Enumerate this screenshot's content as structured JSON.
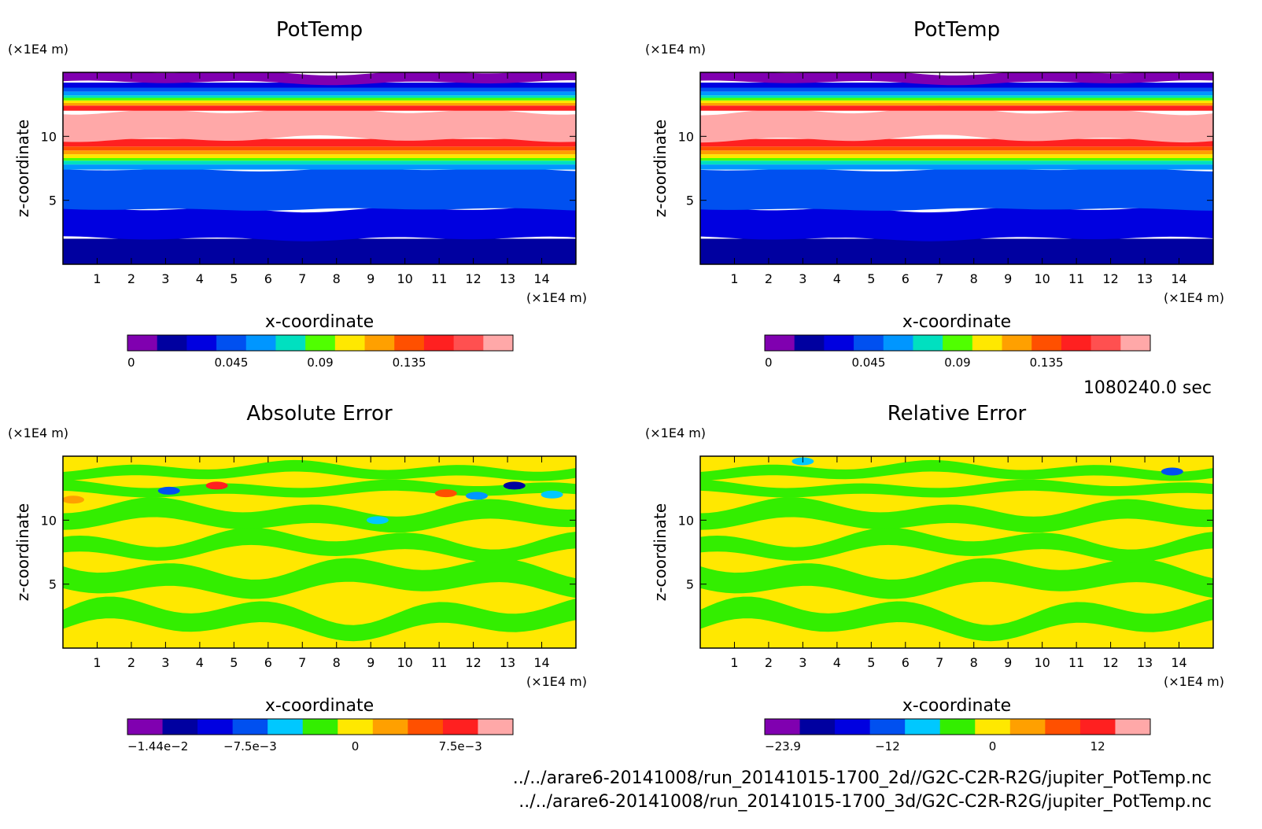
{
  "figure": {
    "time_label": "1080240.0 sec",
    "files": [
      "../../arare6-20141008/run_20141015-1700_2d//G2C-C2R-R2G/jupiter_PotTemp.nc",
      "../../arare6-20141008/run_20141015-1700_3d/G2C-C2R-R2G/jupiter_PotTemp.nc"
    ]
  },
  "chart_data": [
    {
      "type": "heatmap",
      "title": "PotTemp",
      "xlabel": "x-coordinate",
      "ylabel": "z-coordinate",
      "x_unit": "(×1E4 m)",
      "y_unit": "(×1E4 m)",
      "xlim": [
        0,
        15
      ],
      "ylim": [
        0,
        15
      ],
      "x_ticks": [
        1,
        2,
        3,
        4,
        5,
        6,
        7,
        8,
        9,
        10,
        11,
        12,
        13,
        14
      ],
      "y_ticks": [
        5,
        10
      ],
      "colorbar_labels": [
        "0",
        "0.045",
        "0.09",
        "0.135"
      ],
      "colorbar_colors": [
        "#8000b0",
        "#0000a0",
        "#0000e0",
        "#0050f0",
        "#0096ff",
        "#00e0c0",
        "#50ff00",
        "#ffe800",
        "#ffa000",
        "#ff5000",
        "#ff2020",
        "#ff5050",
        "#ffa8a8"
      ],
      "bands": [
        {
          "z0": 0,
          "z1": 2,
          "color": "#0000a0",
          "amp": 0
        },
        {
          "z0": 2,
          "z1": 4.3,
          "color": "#0000e0",
          "amp": 0.25
        },
        {
          "z0": 4.3,
          "z1": 7.4,
          "color": "#0050f0",
          "amp": 0.15
        },
        {
          "z0": 7.4,
          "z1": 7.8,
          "color": "#0096ff",
          "amp": 0
        },
        {
          "z0": 7.8,
          "z1": 8.1,
          "color": "#00e0c0",
          "amp": 0
        },
        {
          "z0": 8.1,
          "z1": 8.3,
          "color": "#50ff00",
          "amp": 0
        },
        {
          "z0": 8.3,
          "z1": 8.6,
          "color": "#ffe800",
          "amp": 0
        },
        {
          "z0": 8.6,
          "z1": 8.9,
          "color": "#ffa000",
          "amp": 0
        },
        {
          "z0": 8.9,
          "z1": 9.2,
          "color": "#ff5000",
          "amp": 0
        },
        {
          "z0": 9.2,
          "z1": 9.8,
          "color": "#ff2020",
          "amp": 0
        },
        {
          "z0": 9.8,
          "z1": 12,
          "color": "#ffa8a8",
          "amp": 0.35
        },
        {
          "z0": 12,
          "z1": 12.4,
          "color": "#ff2020",
          "amp": 0
        },
        {
          "z0": 12.4,
          "z1": 12.6,
          "color": "#ffa000",
          "amp": 0
        },
        {
          "z0": 12.6,
          "z1": 12.8,
          "color": "#ffe800",
          "amp": 0
        },
        {
          "z0": 12.8,
          "z1": 13,
          "color": "#50ff00",
          "amp": 0
        },
        {
          "z0": 13,
          "z1": 13.2,
          "color": "#00e0c0",
          "amp": 0
        },
        {
          "z0": 13.2,
          "z1": 13.5,
          "color": "#0096ff",
          "amp": 0
        },
        {
          "z0": 13.5,
          "z1": 13.8,
          "color": "#0050f0",
          "amp": 0
        },
        {
          "z0": 13.8,
          "z1": 14.2,
          "color": "#0000e0",
          "amp": 0
        },
        {
          "z0": 14.2,
          "z1": 15,
          "color": "#8000b0",
          "amp": 0.25
        }
      ]
    },
    {
      "type": "heatmap",
      "title": "PotTemp",
      "xlabel": "x-coordinate",
      "ylabel": "z-coordinate",
      "x_unit": "(×1E4 m)",
      "y_unit": "(×1E4 m)",
      "xlim": [
        0,
        15
      ],
      "ylim": [
        0,
        15
      ],
      "x_ticks": [
        1,
        2,
        3,
        4,
        5,
        6,
        7,
        8,
        9,
        10,
        11,
        12,
        13,
        14
      ],
      "y_ticks": [
        5,
        10
      ],
      "colorbar_labels": [
        "0",
        "0.045",
        "0.09",
        "0.135"
      ],
      "colorbar_colors": [
        "#8000b0",
        "#0000a0",
        "#0000e0",
        "#0050f0",
        "#0096ff",
        "#00e0c0",
        "#50ff00",
        "#ffe800",
        "#ffa000",
        "#ff5000",
        "#ff2020",
        "#ff5050",
        "#ffa8a8"
      ],
      "bands": [
        {
          "z0": 0,
          "z1": 2,
          "color": "#0000a0",
          "amp": 0
        },
        {
          "z0": 2,
          "z1": 4.3,
          "color": "#0000e0",
          "amp": 0.25
        },
        {
          "z0": 4.3,
          "z1": 7.4,
          "color": "#0050f0",
          "amp": 0.15
        },
        {
          "z0": 7.4,
          "z1": 7.8,
          "color": "#0096ff",
          "amp": 0
        },
        {
          "z0": 7.8,
          "z1": 8.1,
          "color": "#00e0c0",
          "amp": 0
        },
        {
          "z0": 8.1,
          "z1": 8.3,
          "color": "#50ff00",
          "amp": 0
        },
        {
          "z0": 8.3,
          "z1": 8.6,
          "color": "#ffe800",
          "amp": 0
        },
        {
          "z0": 8.6,
          "z1": 8.9,
          "color": "#ffa000",
          "amp": 0
        },
        {
          "z0": 8.9,
          "z1": 9.2,
          "color": "#ff5000",
          "amp": 0
        },
        {
          "z0": 9.2,
          "z1": 9.8,
          "color": "#ff2020",
          "amp": 0
        },
        {
          "z0": 9.8,
          "z1": 12,
          "color": "#ffa8a8",
          "amp": 0.4
        },
        {
          "z0": 12,
          "z1": 12.4,
          "color": "#ff2020",
          "amp": 0
        },
        {
          "z0": 12.4,
          "z1": 12.6,
          "color": "#ffa000",
          "amp": 0
        },
        {
          "z0": 12.6,
          "z1": 12.8,
          "color": "#ffe800",
          "amp": 0
        },
        {
          "z0": 12.8,
          "z1": 13,
          "color": "#50ff00",
          "amp": 0
        },
        {
          "z0": 13,
          "z1": 13.2,
          "color": "#00e0c0",
          "amp": 0
        },
        {
          "z0": 13.2,
          "z1": 13.5,
          "color": "#0096ff",
          "amp": 0
        },
        {
          "z0": 13.5,
          "z1": 13.8,
          "color": "#0050f0",
          "amp": 0
        },
        {
          "z0": 13.8,
          "z1": 14.2,
          "color": "#0000e0",
          "amp": 0
        },
        {
          "z0": 14.2,
          "z1": 15,
          "color": "#8000b0",
          "amp": 0.25
        }
      ]
    },
    {
      "type": "heatmap",
      "title": "Absolute Error",
      "xlabel": "x-coordinate",
      "ylabel": "z-coordinate",
      "x_unit": "(×1E4 m)",
      "y_unit": "(×1E4 m)",
      "xlim": [
        0,
        15
      ],
      "ylim": [
        0,
        15
      ],
      "x_ticks": [
        1,
        2,
        3,
        4,
        5,
        6,
        7,
        8,
        9,
        10,
        11,
        12,
        13,
        14
      ],
      "y_ticks": [
        5,
        10
      ],
      "colorbar_labels": [
        "−1.44e−2",
        "−7.5e−3",
        "0",
        "7.5e−3"
      ],
      "colorbar_colors": [
        "#8000b0",
        "#0000a0",
        "#0000e0",
        "#0050f0",
        "#00c8ff",
        "#33ee00",
        "#ffe800",
        "#ffa000",
        "#ff5000",
        "#ff2020",
        "#ffa8a8"
      ],
      "background": "#ffe800",
      "green_bands": [
        {
          "z0": 1.5,
          "z1": 3.0,
          "amp": 1.2
        },
        {
          "z0": 4.6,
          "z1": 6.3,
          "amp": 1.0
        },
        {
          "z0": 7.4,
          "z1": 8.6,
          "amp": 0.9
        },
        {
          "z0": 9.6,
          "z1": 11.0,
          "amp": 0.8
        },
        {
          "z0": 12.0,
          "z1": 12.8,
          "amp": 0.4
        },
        {
          "z0": 13.4,
          "z1": 14.2,
          "amp": 0.5
        }
      ],
      "spots": [
        {
          "x": 3.1,
          "z": 12.3,
          "color": "#0050f0"
        },
        {
          "x": 0.3,
          "z": 11.6,
          "color": "#ffa000"
        },
        {
          "x": 11.2,
          "z": 12.1,
          "color": "#ff5000"
        },
        {
          "x": 12.1,
          "z": 11.9,
          "color": "#0096ff"
        },
        {
          "x": 14.3,
          "z": 12.0,
          "color": "#00c8ff"
        },
        {
          "x": 4.5,
          "z": 12.7,
          "color": "#ff2020"
        },
        {
          "x": 13.2,
          "z": 12.7,
          "color": "#0000a0"
        },
        {
          "x": 9.2,
          "z": 10.0,
          "color": "#00c8ff"
        }
      ]
    },
    {
      "type": "heatmap",
      "title": "Relative Error",
      "xlabel": "x-coordinate",
      "ylabel": "z-coordinate",
      "x_unit": "(×1E4 m)",
      "y_unit": "(×1E4 m)",
      "xlim": [
        0,
        15
      ],
      "ylim": [
        0,
        15
      ],
      "x_ticks": [
        1,
        2,
        3,
        4,
        5,
        6,
        7,
        8,
        9,
        10,
        11,
        12,
        13,
        14
      ],
      "y_ticks": [
        5,
        10
      ],
      "colorbar_labels": [
        "−23.9",
        "−12",
        "0",
        "12"
      ],
      "colorbar_colors": [
        "#8000b0",
        "#0000a0",
        "#0000e0",
        "#0050f0",
        "#00c8ff",
        "#33ee00",
        "#ffe800",
        "#ffa000",
        "#ff5000",
        "#ff2020",
        "#ffa8a8"
      ],
      "background": "#ffe800",
      "green_bands": [
        {
          "z0": 1.5,
          "z1": 3.0,
          "amp": 1.2
        },
        {
          "z0": 4.6,
          "z1": 6.3,
          "amp": 1.0
        },
        {
          "z0": 7.4,
          "z1": 8.6,
          "amp": 0.9
        },
        {
          "z0": 9.6,
          "z1": 11.0,
          "amp": 0.8
        },
        {
          "z0": 12.0,
          "z1": 12.8,
          "amp": 0.4
        },
        {
          "z0": 13.4,
          "z1": 14.2,
          "amp": 0.5
        }
      ],
      "spots": [
        {
          "x": 3.0,
          "z": 14.6,
          "color": "#00c8ff"
        },
        {
          "x": 13.8,
          "z": 13.8,
          "color": "#0050f0"
        }
      ]
    }
  ]
}
